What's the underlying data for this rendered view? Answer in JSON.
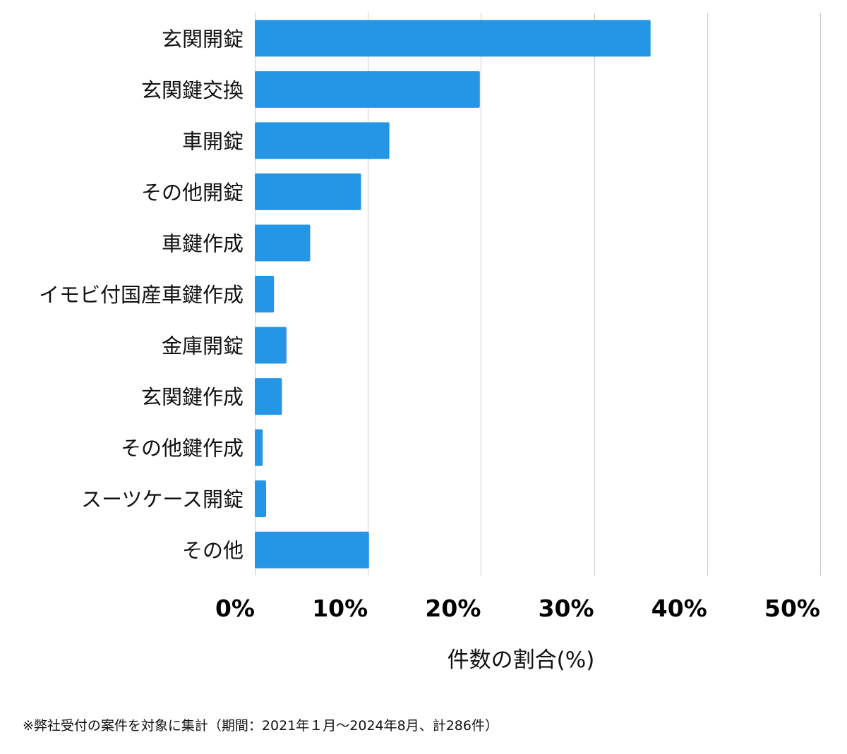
{
  "chart_data": {
    "type": "bar",
    "orientation": "horizontal",
    "categories": [
      "玄関開錠",
      "玄関鍵交換",
      "車開錠",
      "その他開錠",
      "車鍵作成",
      "イモビ付国産車鍵作成",
      "金庫開錠",
      "玄関鍵作成",
      "その他鍵作成",
      "スーツケース開錠",
      "その他"
    ],
    "values": [
      35.0,
      19.9,
      11.9,
      9.4,
      4.9,
      1.7,
      2.8,
      2.4,
      0.7,
      1.0,
      10.1
    ],
    "xlabel": "件数の割合(%)",
    "ylabel": "",
    "xlim": [
      0,
      50
    ],
    "x_ticks": [
      "0%",
      "10%",
      "20%",
      "30%",
      "40%",
      "50%"
    ],
    "x_tick_values": [
      0,
      10,
      20,
      30,
      40,
      50
    ],
    "grid": "vertical",
    "bar_color": "#2596e6"
  },
  "footnote": "※弊社受付の案件を対象に集計（期間：2021年１月〜2024年8月、計286件）"
}
